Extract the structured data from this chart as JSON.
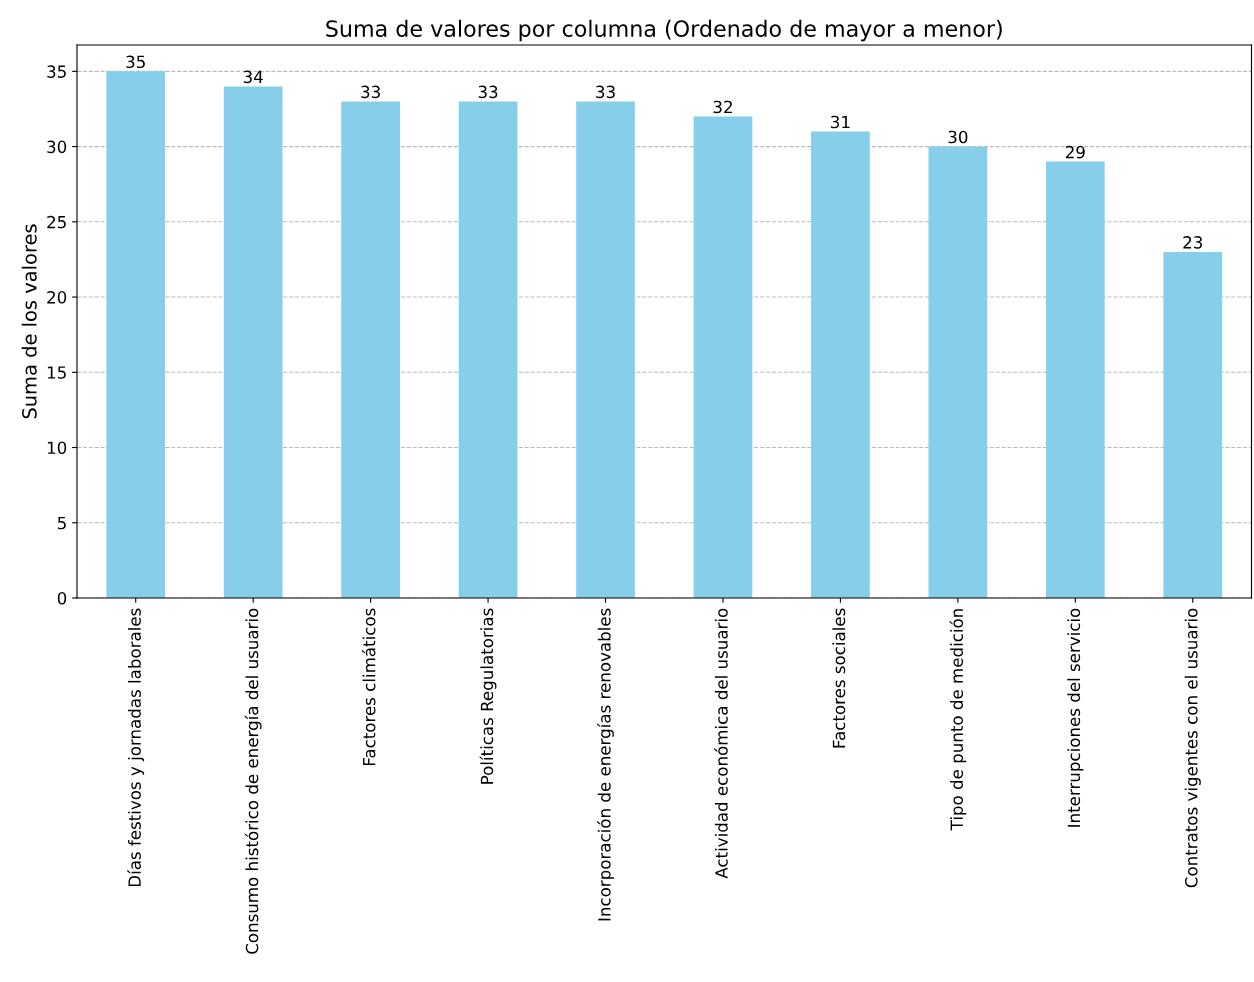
{
  "chart_data": {
    "type": "bar",
    "title": "Suma de valores por columna (Ordenado de mayor a menor)",
    "ylabel": "Suma de los valores",
    "categories": [
      "Días festivos y jornadas laborales",
      "Consumo histórico de energía del usuario",
      "Factores climáticos",
      "Políticas Regulatorias",
      "Incorporación de energías renovables",
      "Actividad económica del usuario",
      "Factores sociales",
      "Tipo de punto de medición",
      "Interrupciones del servicio",
      "Contratos vigentes con el usuario"
    ],
    "values": [
      35,
      34,
      33,
      33,
      33,
      32,
      31,
      30,
      29,
      23
    ],
    "color": "#87ceeb",
    "ylim": [
      0,
      36.75
    ],
    "yticks": [
      0,
      5,
      10,
      15,
      20,
      25,
      30,
      35
    ],
    "grid": "y",
    "data_labels": true
  }
}
